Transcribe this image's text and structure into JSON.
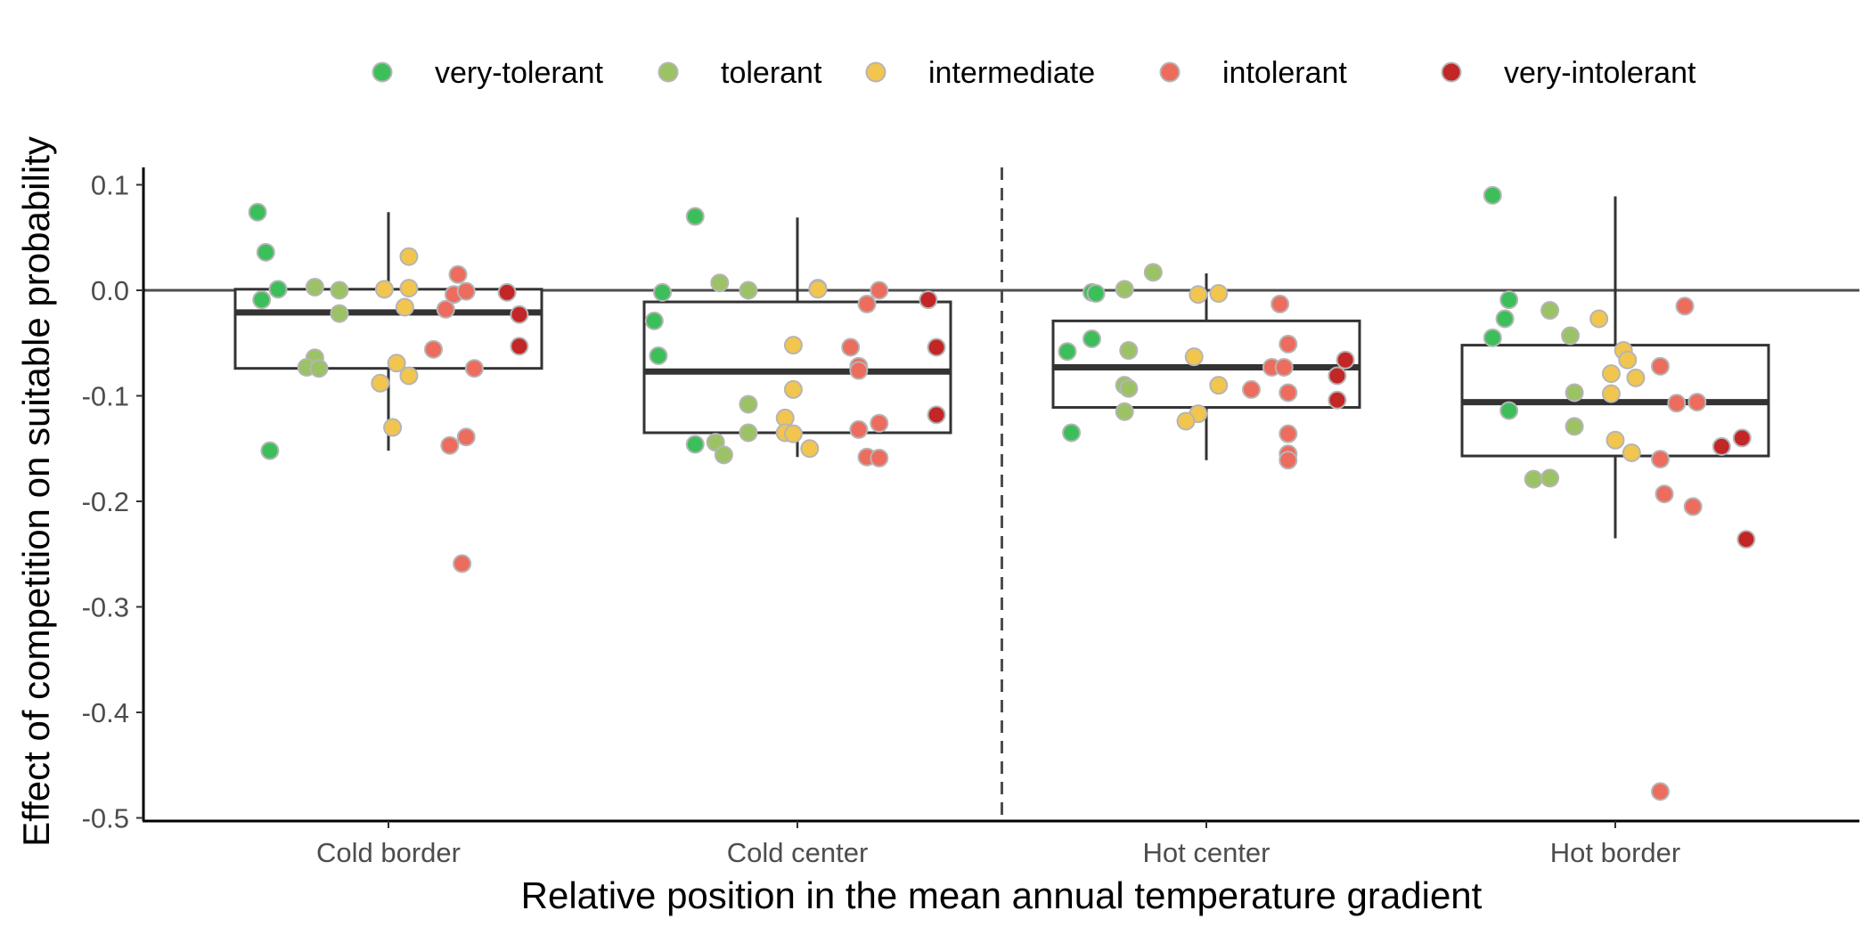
{
  "chart_data": {
    "type": "scatter",
    "subtype": "boxplot-with-jitter",
    "title": "",
    "xlabel": "Relative position in the mean annual temperature gradient",
    "ylabel": "Effect of competition on suitable probability",
    "categories": [
      "Cold border",
      "Cold center",
      "Hot center",
      "Hot border"
    ],
    "ylim": [
      -0.5,
      0.12
    ],
    "yticks": [
      0.1,
      0.0,
      -0.1,
      -0.2,
      -0.3,
      -0.4,
      -0.5
    ],
    "ytick_labels": [
      "0.1",
      "0.0",
      "-0.1",
      "-0.2",
      "-0.3",
      "-0.4",
      "-0.5"
    ],
    "grid": false,
    "legend_position": "top",
    "reference_line": {
      "y": 0.0,
      "style": "solid"
    },
    "separator_line": {
      "between": [
        "Cold center",
        "Hot center"
      ],
      "style": "dashed"
    },
    "series_colors": {
      "very-tolerant": "#3cbf5a",
      "tolerant": "#9cc266",
      "intermediate": "#f2c54f",
      "intolerant": "#ec6c5e",
      "very-intolerant": "#c22626"
    },
    "point_stroke": "#b5b5b5",
    "box_stroke": "#333333",
    "boxes": [
      {
        "category": "Cold border",
        "lower_whisker": -0.152,
        "q1": -0.074,
        "median": -0.021,
        "q3": 0.001,
        "upper_whisker": 0.074
      },
      {
        "category": "Cold center",
        "lower_whisker": -0.158,
        "q1": -0.135,
        "median": -0.077,
        "q3": -0.011,
        "upper_whisker": 0.069
      },
      {
        "category": "Hot center",
        "lower_whisker": -0.161,
        "q1": -0.111,
        "median": -0.073,
        "q3": -0.029,
        "upper_whisker": 0.016
      },
      {
        "category": "Hot border",
        "lower_whisker": -0.235,
        "q1": -0.157,
        "median": -0.106,
        "q3": -0.052,
        "upper_whisker": 0.089
      }
    ],
    "series": [
      {
        "name": "very-tolerant",
        "points": [
          {
            "category": "Cold border",
            "jitter": -0.32,
            "y": 0.074
          },
          {
            "category": "Cold border",
            "jitter": -0.3,
            "y": 0.036
          },
          {
            "category": "Cold border",
            "jitter": -0.27,
            "y": 0.001
          },
          {
            "category": "Cold border",
            "jitter": -0.31,
            "y": -0.009
          },
          {
            "category": "Cold border",
            "jitter": -0.29,
            "y": -0.152
          },
          {
            "category": "Cold center",
            "jitter": -0.25,
            "y": 0.07
          },
          {
            "category": "Cold center",
            "jitter": -0.33,
            "y": -0.002
          },
          {
            "category": "Cold center",
            "jitter": -0.35,
            "y": -0.029
          },
          {
            "category": "Cold center",
            "jitter": -0.34,
            "y": -0.062
          },
          {
            "category": "Cold center",
            "jitter": -0.25,
            "y": -0.146
          },
          {
            "category": "Hot center",
            "jitter": -0.28,
            "y": -0.002
          },
          {
            "category": "Hot center",
            "jitter": -0.27,
            "y": -0.003
          },
          {
            "category": "Hot center",
            "jitter": -0.28,
            "y": -0.046
          },
          {
            "category": "Hot center",
            "jitter": -0.34,
            "y": -0.058
          },
          {
            "category": "Hot center",
            "jitter": -0.33,
            "y": -0.135
          },
          {
            "category": "Hot border",
            "jitter": -0.3,
            "y": 0.09
          },
          {
            "category": "Hot border",
            "jitter": -0.26,
            "y": -0.009
          },
          {
            "category": "Hot border",
            "jitter": -0.27,
            "y": -0.027
          },
          {
            "category": "Hot border",
            "jitter": -0.3,
            "y": -0.045
          },
          {
            "category": "Hot border",
            "jitter": -0.26,
            "y": -0.114
          }
        ]
      },
      {
        "name": "tolerant",
        "points": [
          {
            "category": "Cold border",
            "jitter": -0.18,
            "y": 0.003
          },
          {
            "category": "Cold border",
            "jitter": -0.12,
            "y": 0.0
          },
          {
            "category": "Cold border",
            "jitter": -0.12,
            "y": -0.022
          },
          {
            "category": "Cold border",
            "jitter": -0.18,
            "y": -0.064
          },
          {
            "category": "Cold border",
            "jitter": -0.2,
            "y": -0.073
          },
          {
            "category": "Cold border",
            "jitter": -0.17,
            "y": -0.074
          },
          {
            "category": "Cold center",
            "jitter": -0.19,
            "y": 0.007
          },
          {
            "category": "Cold center",
            "jitter": -0.12,
            "y": 0.0
          },
          {
            "category": "Cold center",
            "jitter": -0.12,
            "y": -0.108
          },
          {
            "category": "Cold center",
            "jitter": -0.12,
            "y": -0.135
          },
          {
            "category": "Cold center",
            "jitter": -0.2,
            "y": -0.144
          },
          {
            "category": "Cold center",
            "jitter": -0.18,
            "y": -0.156
          },
          {
            "category": "Hot center",
            "jitter": -0.2,
            "y": 0.001
          },
          {
            "category": "Hot center",
            "jitter": -0.13,
            "y": 0.017
          },
          {
            "category": "Hot center",
            "jitter": -0.19,
            "y": -0.057
          },
          {
            "category": "Hot center",
            "jitter": -0.2,
            "y": -0.09
          },
          {
            "category": "Hot center",
            "jitter": -0.19,
            "y": -0.093
          },
          {
            "category": "Hot center",
            "jitter": -0.2,
            "y": -0.115
          },
          {
            "category": "Hot border",
            "jitter": -0.16,
            "y": -0.019
          },
          {
            "category": "Hot border",
            "jitter": -0.11,
            "y": -0.043
          },
          {
            "category": "Hot border",
            "jitter": -0.1,
            "y": -0.097
          },
          {
            "category": "Hot border",
            "jitter": -0.1,
            "y": -0.129
          },
          {
            "category": "Hot border",
            "jitter": -0.2,
            "y": -0.179
          },
          {
            "category": "Hot border",
            "jitter": -0.16,
            "y": -0.178
          }
        ]
      },
      {
        "name": "intermediate",
        "points": [
          {
            "category": "Cold border",
            "jitter": 0.05,
            "y": 0.032
          },
          {
            "category": "Cold border",
            "jitter": -0.01,
            "y": 0.001
          },
          {
            "category": "Cold border",
            "jitter": 0.05,
            "y": 0.002
          },
          {
            "category": "Cold border",
            "jitter": 0.04,
            "y": -0.016
          },
          {
            "category": "Cold border",
            "jitter": 0.02,
            "y": -0.069
          },
          {
            "category": "Cold border",
            "jitter": -0.02,
            "y": -0.088
          },
          {
            "category": "Cold border",
            "jitter": 0.05,
            "y": -0.081
          },
          {
            "category": "Cold border",
            "jitter": 0.01,
            "y": -0.13
          },
          {
            "category": "Cold center",
            "jitter": 0.05,
            "y": 0.002
          },
          {
            "category": "Cold center",
            "jitter": 0.05,
            "y": 0.001
          },
          {
            "category": "Cold center",
            "jitter": -0.01,
            "y": -0.052
          },
          {
            "category": "Cold center",
            "jitter": -0.01,
            "y": -0.094
          },
          {
            "category": "Cold center",
            "jitter": -0.03,
            "y": -0.121
          },
          {
            "category": "Cold center",
            "jitter": -0.03,
            "y": -0.135
          },
          {
            "category": "Cold center",
            "jitter": -0.01,
            "y": -0.136
          },
          {
            "category": "Cold center",
            "jitter": 0.03,
            "y": -0.15
          },
          {
            "category": "Hot center",
            "jitter": -0.02,
            "y": -0.004
          },
          {
            "category": "Hot center",
            "jitter": 0.03,
            "y": -0.003
          },
          {
            "category": "Hot center",
            "jitter": -0.03,
            "y": -0.063
          },
          {
            "category": "Hot center",
            "jitter": 0.03,
            "y": -0.09
          },
          {
            "category": "Hot center",
            "jitter": -0.02,
            "y": -0.117
          },
          {
            "category": "Hot center",
            "jitter": -0.05,
            "y": -0.124
          },
          {
            "category": "Hot border",
            "jitter": -0.04,
            "y": -0.027
          },
          {
            "category": "Hot border",
            "jitter": -0.01,
            "y": -0.079
          },
          {
            "category": "Hot border",
            "jitter": -0.01,
            "y": -0.098
          },
          {
            "category": "Hot border",
            "jitter": 0.02,
            "y": -0.057
          },
          {
            "category": "Hot border",
            "jitter": 0.03,
            "y": -0.066
          },
          {
            "category": "Hot border",
            "jitter": 0.05,
            "y": -0.083
          },
          {
            "category": "Hot border",
            "jitter": 0.0,
            "y": -0.142
          },
          {
            "category": "Hot border",
            "jitter": 0.04,
            "y": -0.154
          }
        ]
      },
      {
        "name": "intolerant",
        "points": [
          {
            "category": "Cold border",
            "jitter": 0.17,
            "y": 0.015
          },
          {
            "category": "Cold border",
            "jitter": 0.16,
            "y": -0.004
          },
          {
            "category": "Cold border",
            "jitter": 0.19,
            "y": -0.001
          },
          {
            "category": "Cold border",
            "jitter": 0.14,
            "y": -0.018
          },
          {
            "category": "Cold border",
            "jitter": 0.11,
            "y": -0.056
          },
          {
            "category": "Cold border",
            "jitter": 0.21,
            "y": -0.074
          },
          {
            "category": "Cold border",
            "jitter": 0.19,
            "y": -0.139
          },
          {
            "category": "Cold border",
            "jitter": 0.15,
            "y": -0.147
          },
          {
            "category": "Cold border",
            "jitter": 0.18,
            "y": -0.259
          },
          {
            "category": "Cold center",
            "jitter": 0.2,
            "y": 0.0
          },
          {
            "category": "Cold center",
            "jitter": 0.17,
            "y": -0.013
          },
          {
            "category": "Cold center",
            "jitter": 0.13,
            "y": -0.054
          },
          {
            "category": "Cold center",
            "jitter": 0.15,
            "y": -0.072
          },
          {
            "category": "Cold center",
            "jitter": 0.15,
            "y": -0.076
          },
          {
            "category": "Cold center",
            "jitter": 0.2,
            "y": -0.126
          },
          {
            "category": "Cold center",
            "jitter": 0.15,
            "y": -0.132
          },
          {
            "category": "Cold center",
            "jitter": 0.17,
            "y": -0.158
          },
          {
            "category": "Cold center",
            "jitter": 0.2,
            "y": -0.159
          },
          {
            "category": "Hot center",
            "jitter": 0.18,
            "y": -0.013
          },
          {
            "category": "Hot center",
            "jitter": 0.2,
            "y": -0.051
          },
          {
            "category": "Hot center",
            "jitter": 0.16,
            "y": -0.073
          },
          {
            "category": "Hot center",
            "jitter": 0.19,
            "y": -0.073
          },
          {
            "category": "Hot center",
            "jitter": 0.11,
            "y": -0.094
          },
          {
            "category": "Hot center",
            "jitter": 0.2,
            "y": -0.097
          },
          {
            "category": "Hot center",
            "jitter": 0.2,
            "y": -0.136
          },
          {
            "category": "Hot center",
            "jitter": 0.2,
            "y": -0.155
          },
          {
            "category": "Hot center",
            "jitter": 0.2,
            "y": -0.161
          },
          {
            "category": "Hot border",
            "jitter": 0.17,
            "y": -0.015
          },
          {
            "category": "Hot border",
            "jitter": 0.11,
            "y": -0.072
          },
          {
            "category": "Hot border",
            "jitter": 0.15,
            "y": -0.107
          },
          {
            "category": "Hot border",
            "jitter": 0.2,
            "y": -0.106
          },
          {
            "category": "Hot border",
            "jitter": 0.11,
            "y": -0.16
          },
          {
            "category": "Hot border",
            "jitter": 0.12,
            "y": -0.193
          },
          {
            "category": "Hot border",
            "jitter": 0.19,
            "y": -0.205
          },
          {
            "category": "Hot border",
            "jitter": 0.11,
            "y": -0.475
          }
        ]
      },
      {
        "name": "very-intolerant",
        "points": [
          {
            "category": "Cold border",
            "jitter": 0.29,
            "y": -0.002
          },
          {
            "category": "Cold border",
            "jitter": 0.32,
            "y": -0.023
          },
          {
            "category": "Cold border",
            "jitter": 0.32,
            "y": -0.053
          },
          {
            "category": "Cold center",
            "jitter": 0.32,
            "y": -0.009
          },
          {
            "category": "Cold center",
            "jitter": 0.34,
            "y": -0.054
          },
          {
            "category": "Cold center",
            "jitter": 0.34,
            "y": -0.118
          },
          {
            "category": "Hot center",
            "jitter": 0.34,
            "y": -0.066
          },
          {
            "category": "Hot center",
            "jitter": 0.32,
            "y": -0.081
          },
          {
            "category": "Hot center",
            "jitter": 0.32,
            "y": -0.104
          },
          {
            "category": "Hot border",
            "jitter": 0.26,
            "y": -0.148
          },
          {
            "category": "Hot border",
            "jitter": 0.31,
            "y": -0.14
          },
          {
            "category": "Hot border",
            "jitter": 0.32,
            "y": -0.236
          }
        ]
      }
    ]
  }
}
